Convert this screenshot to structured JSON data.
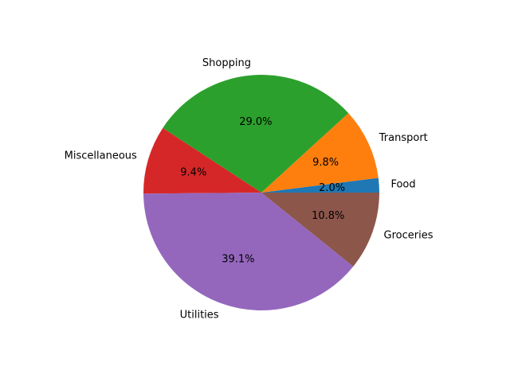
{
  "chart_data": {
    "type": "pie",
    "title": "",
    "start_angle_deg": 0,
    "direction": "counterclockwise",
    "slices": [
      {
        "label": "Food",
        "value": 2.0,
        "pct_label": "2.0%",
        "color": "#1f77b4"
      },
      {
        "label": "Transport",
        "value": 9.8,
        "pct_label": "9.8%",
        "color": "#ff7f0e"
      },
      {
        "label": "Shopping",
        "value": 29.0,
        "pct_label": "29.0%",
        "color": "#2ca02c"
      },
      {
        "label": "Miscellaneous",
        "value": 9.4,
        "pct_label": "9.4%",
        "color": "#d62728"
      },
      {
        "label": "Utilities",
        "value": 39.1,
        "pct_label": "39.1%",
        "color": "#9467bd"
      },
      {
        "label": "Groceries",
        "value": 10.8,
        "pct_label": "10.8%",
        "color": "#8c564b"
      }
    ]
  }
}
